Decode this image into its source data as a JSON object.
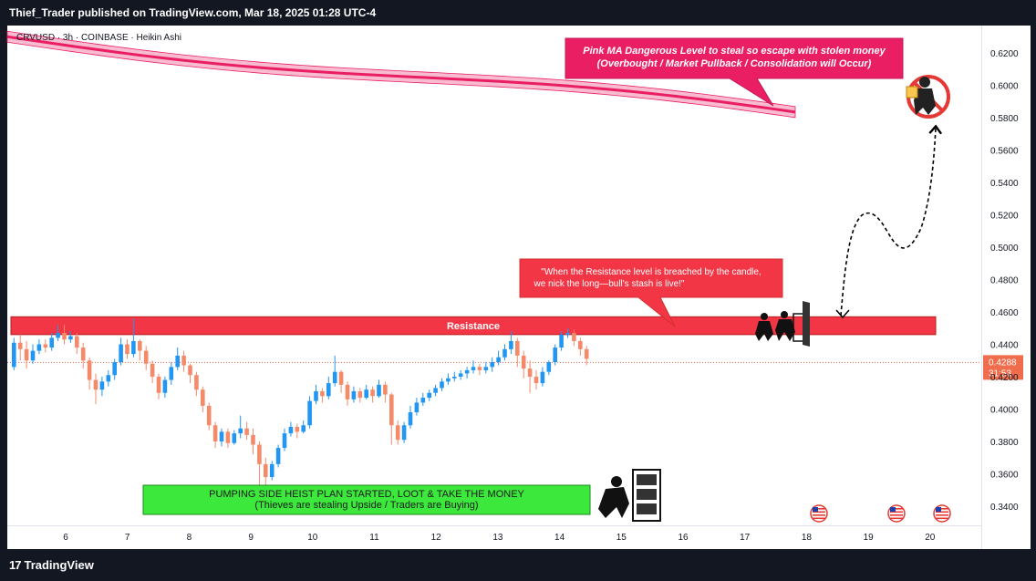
{
  "header": {
    "publisher_line": "Thief_Trader published on TradingView.com, Mar 18, 2025 01:28 UTC-4"
  },
  "symbol_line": "CRVUSD · 3h · COINBASE · Heikin Ashi",
  "footer": {
    "brand": "TradingView",
    "brand_mark": "17"
  },
  "colors": {
    "up_candle": "#2196f3",
    "down_candle": "#f58a6b",
    "ma_line": "#e91e63",
    "ma_band": "#f8bbd0",
    "resistance_zone": "#f23645",
    "support_box": "#3ce83c",
    "callout_fill": "#f23645",
    "price_label": "#ef6c4c"
  },
  "chart_data": {
    "type": "candlestick",
    "style": "Heikin Ashi",
    "timeframe": "3h",
    "ylim": [
      0.33,
      0.63
    ],
    "y_ticks": [
      "0.6200",
      "0.6000",
      "0.5800",
      "0.5600",
      "0.5400",
      "0.5200",
      "0.5000",
      "0.4800",
      "0.4600",
      "0.4400",
      "0.4200",
      "0.4000",
      "0.3800",
      "0.3600",
      "0.3400"
    ],
    "x_ticks": [
      "6",
      "7",
      "8",
      "9",
      "10",
      "11",
      "12",
      "13",
      "14",
      "15",
      "16",
      "17",
      "18",
      "19",
      "20"
    ],
    "current_price": "0.4288",
    "countdown": "31:53",
    "candles": [
      {
        "o": 0.426,
        "c": 0.441,
        "h": 0.444,
        "l": 0.424
      },
      {
        "o": 0.441,
        "c": 0.437,
        "h": 0.446,
        "l": 0.43
      },
      {
        "o": 0.437,
        "c": 0.43,
        "h": 0.442,
        "l": 0.425
      },
      {
        "o": 0.43,
        "c": 0.436,
        "h": 0.44,
        "l": 0.428
      },
      {
        "o": 0.436,
        "c": 0.44,
        "h": 0.443,
        "l": 0.434
      },
      {
        "o": 0.44,
        "c": 0.438,
        "h": 0.443,
        "l": 0.435
      },
      {
        "o": 0.438,
        "c": 0.444,
        "h": 0.447,
        "l": 0.436
      },
      {
        "o": 0.444,
        "c": 0.447,
        "h": 0.452,
        "l": 0.442
      },
      {
        "o": 0.447,
        "c": 0.443,
        "h": 0.452,
        "l": 0.44
      },
      {
        "o": 0.443,
        "c": 0.445,
        "h": 0.448,
        "l": 0.441
      },
      {
        "o": 0.445,
        "c": 0.438,
        "h": 0.447,
        "l": 0.434
      },
      {
        "o": 0.438,
        "c": 0.43,
        "h": 0.441,
        "l": 0.425
      },
      {
        "o": 0.43,
        "c": 0.418,
        "h": 0.432,
        "l": 0.412
      },
      {
        "o": 0.418,
        "c": 0.412,
        "h": 0.422,
        "l": 0.403
      },
      {
        "o": 0.412,
        "c": 0.417,
        "h": 0.42,
        "l": 0.408
      },
      {
        "o": 0.417,
        "c": 0.421,
        "h": 0.424,
        "l": 0.414
      },
      {
        "o": 0.421,
        "c": 0.429,
        "h": 0.431,
        "l": 0.418
      },
      {
        "o": 0.429,
        "c": 0.44,
        "h": 0.444,
        "l": 0.427
      },
      {
        "o": 0.44,
        "c": 0.434,
        "h": 0.443,
        "l": 0.431
      },
      {
        "o": 0.434,
        "c": 0.442,
        "h": 0.456,
        "l": 0.432
      },
      {
        "o": 0.442,
        "c": 0.436,
        "h": 0.443,
        "l": 0.43
      },
      {
        "o": 0.436,
        "c": 0.428,
        "h": 0.439,
        "l": 0.424
      },
      {
        "o": 0.428,
        "c": 0.42,
        "h": 0.43,
        "l": 0.416
      },
      {
        "o": 0.42,
        "c": 0.41,
        "h": 0.422,
        "l": 0.406
      },
      {
        "o": 0.41,
        "c": 0.418,
        "h": 0.42,
        "l": 0.407
      },
      {
        "o": 0.418,
        "c": 0.426,
        "h": 0.429,
        "l": 0.415
      },
      {
        "o": 0.426,
        "c": 0.433,
        "h": 0.438,
        "l": 0.424
      },
      {
        "o": 0.433,
        "c": 0.427,
        "h": 0.436,
        "l": 0.423
      },
      {
        "o": 0.427,
        "c": 0.421,
        "h": 0.428,
        "l": 0.416
      },
      {
        "o": 0.421,
        "c": 0.412,
        "h": 0.423,
        "l": 0.408
      },
      {
        "o": 0.412,
        "c": 0.402,
        "h": 0.414,
        "l": 0.398
      },
      {
        "o": 0.402,
        "c": 0.39,
        "h": 0.404,
        "l": 0.387
      },
      {
        "o": 0.39,
        "c": 0.38,
        "h": 0.392,
        "l": 0.376
      },
      {
        "o": 0.38,
        "c": 0.386,
        "h": 0.388,
        "l": 0.377
      },
      {
        "o": 0.386,
        "c": 0.379,
        "h": 0.388,
        "l": 0.376
      },
      {
        "o": 0.379,
        "c": 0.385,
        "h": 0.387,
        "l": 0.378
      },
      {
        "o": 0.385,
        "c": 0.388,
        "h": 0.396,
        "l": 0.382
      },
      {
        "o": 0.388,
        "c": 0.384,
        "h": 0.392,
        "l": 0.381
      },
      {
        "o": 0.384,
        "c": 0.378,
        "h": 0.388,
        "l": 0.372
      },
      {
        "o": 0.378,
        "c": 0.366,
        "h": 0.38,
        "l": 0.352
      },
      {
        "o": 0.366,
        "c": 0.358,
        "h": 0.37,
        "l": 0.352
      },
      {
        "o": 0.358,
        "c": 0.366,
        "h": 0.368,
        "l": 0.356
      },
      {
        "o": 0.366,
        "c": 0.376,
        "h": 0.378,
        "l": 0.364
      },
      {
        "o": 0.376,
        "c": 0.385,
        "h": 0.388,
        "l": 0.374
      },
      {
        "o": 0.385,
        "c": 0.389,
        "h": 0.392,
        "l": 0.383
      },
      {
        "o": 0.389,
        "c": 0.386,
        "h": 0.391,
        "l": 0.382
      },
      {
        "o": 0.386,
        "c": 0.39,
        "h": 0.393,
        "l": 0.385
      },
      {
        "o": 0.39,
        "c": 0.405,
        "h": 0.408,
        "l": 0.388
      },
      {
        "o": 0.405,
        "c": 0.411,
        "h": 0.415,
        "l": 0.403
      },
      {
        "o": 0.411,
        "c": 0.408,
        "h": 0.413,
        "l": 0.404
      },
      {
        "o": 0.408,
        "c": 0.416,
        "h": 0.42,
        "l": 0.406
      },
      {
        "o": 0.416,
        "c": 0.423,
        "h": 0.433,
        "l": 0.414
      },
      {
        "o": 0.423,
        "c": 0.415,
        "h": 0.424,
        "l": 0.41
      },
      {
        "o": 0.415,
        "c": 0.406,
        "h": 0.417,
        "l": 0.402
      },
      {
        "o": 0.406,
        "c": 0.411,
        "h": 0.414,
        "l": 0.404
      },
      {
        "o": 0.411,
        "c": 0.407,
        "h": 0.413,
        "l": 0.404
      },
      {
        "o": 0.407,
        "c": 0.412,
        "h": 0.415,
        "l": 0.406
      },
      {
        "o": 0.412,
        "c": 0.408,
        "h": 0.414,
        "l": 0.404
      },
      {
        "o": 0.408,
        "c": 0.415,
        "h": 0.418,
        "l": 0.407
      },
      {
        "o": 0.415,
        "c": 0.409,
        "h": 0.417,
        "l": 0.404
      },
      {
        "o": 0.409,
        "c": 0.39,
        "h": 0.41,
        "l": 0.378
      },
      {
        "o": 0.39,
        "c": 0.381,
        "h": 0.393,
        "l": 0.378
      },
      {
        "o": 0.381,
        "c": 0.39,
        "h": 0.392,
        "l": 0.379
      },
      {
        "o": 0.39,
        "c": 0.398,
        "h": 0.402,
        "l": 0.388
      },
      {
        "o": 0.398,
        "c": 0.404,
        "h": 0.407,
        "l": 0.396
      },
      {
        "o": 0.404,
        "c": 0.407,
        "h": 0.41,
        "l": 0.402
      },
      {
        "o": 0.407,
        "c": 0.41,
        "h": 0.412,
        "l": 0.405
      },
      {
        "o": 0.41,
        "c": 0.413,
        "h": 0.415,
        "l": 0.408
      },
      {
        "o": 0.413,
        "c": 0.417,
        "h": 0.419,
        "l": 0.411
      },
      {
        "o": 0.417,
        "c": 0.419,
        "h": 0.422,
        "l": 0.415
      },
      {
        "o": 0.419,
        "c": 0.42,
        "h": 0.423,
        "l": 0.417
      },
      {
        "o": 0.42,
        "c": 0.422,
        "h": 0.424,
        "l": 0.418
      },
      {
        "o": 0.422,
        "c": 0.424,
        "h": 0.426,
        "l": 0.419
      },
      {
        "o": 0.424,
        "c": 0.426,
        "h": 0.43,
        "l": 0.422
      },
      {
        "o": 0.426,
        "c": 0.424,
        "h": 0.428,
        "l": 0.421
      },
      {
        "o": 0.424,
        "c": 0.426,
        "h": 0.429,
        "l": 0.422
      },
      {
        "o": 0.426,
        "c": 0.429,
        "h": 0.432,
        "l": 0.423
      },
      {
        "o": 0.429,
        "c": 0.432,
        "h": 0.436,
        "l": 0.427
      },
      {
        "o": 0.432,
        "c": 0.437,
        "h": 0.44,
        "l": 0.43
      },
      {
        "o": 0.437,
        "c": 0.442,
        "h": 0.448,
        "l": 0.434
      },
      {
        "o": 0.442,
        "c": 0.433,
        "h": 0.444,
        "l": 0.426
      },
      {
        "o": 0.433,
        "c": 0.425,
        "h": 0.436,
        "l": 0.419
      },
      {
        "o": 0.425,
        "c": 0.42,
        "h": 0.43,
        "l": 0.41
      },
      {
        "o": 0.42,
        "c": 0.416,
        "h": 0.424,
        "l": 0.412
      },
      {
        "o": 0.416,
        "c": 0.423,
        "h": 0.426,
        "l": 0.414
      },
      {
        "o": 0.423,
        "c": 0.429,
        "h": 0.43,
        "l": 0.421
      },
      {
        "o": 0.429,
        "c": 0.438,
        "h": 0.44,
        "l": 0.427
      },
      {
        "o": 0.438,
        "c": 0.446,
        "h": 0.448,
        "l": 0.436
      },
      {
        "o": 0.446,
        "c": 0.447,
        "h": 0.45,
        "l": 0.444
      },
      {
        "o": 0.447,
        "c": 0.442,
        "h": 0.449,
        "l": 0.439
      },
      {
        "o": 0.442,
        "c": 0.437,
        "h": 0.444,
        "l": 0.433
      },
      {
        "o": 0.437,
        "c": 0.431,
        "h": 0.439,
        "l": 0.427
      }
    ]
  },
  "moving_average": {
    "label": "Pink MA"
  },
  "zones": {
    "resistance": {
      "label": "Resistance",
      "top": 0.457,
      "bottom": 0.446
    },
    "support_box": {
      "line1": "PUMPING SIDE HEIST PLAN STARTED, LOOT & TAKE THE MONEY",
      "line2": "(Thieves are stealing Upside / Traders are Buying)"
    }
  },
  "callouts": {
    "ma": {
      "line1": "Pink MA Dangerous Level to steal so escape with stolen money",
      "line2": "(Overbought / Market Pullback / Consolidation will Occur)"
    },
    "resistance": {
      "line1": "\"When the Resistance level is breached by the candle,",
      "line2": "we nick the long—bull's stash is live!\""
    }
  },
  "flags": [
    "us-flag",
    "us-flag",
    "us-flag"
  ]
}
